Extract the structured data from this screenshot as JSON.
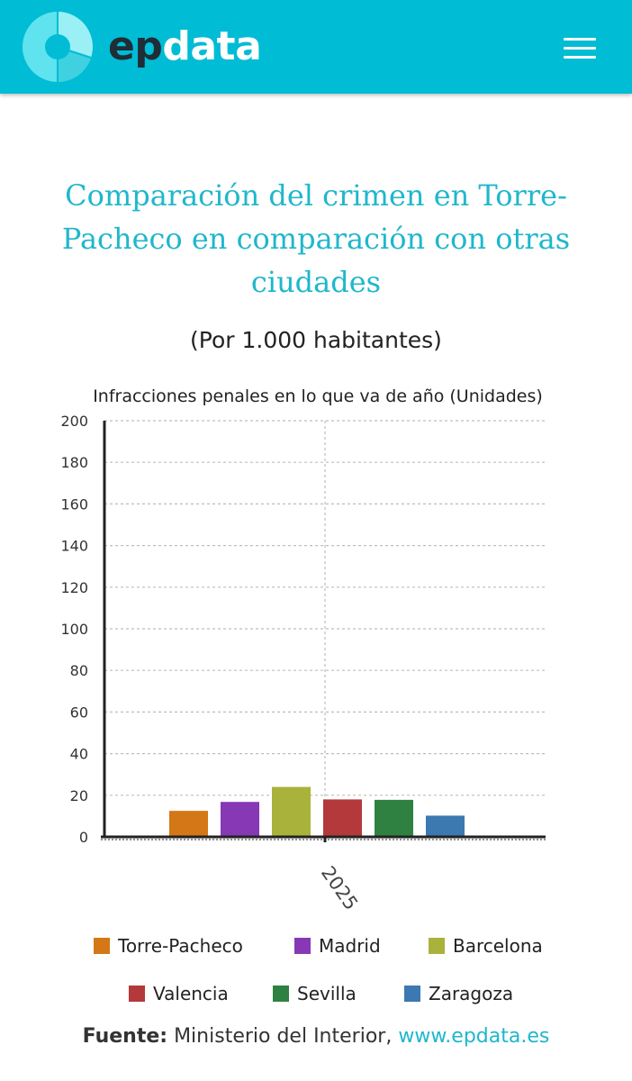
{
  "header": {
    "logo_ep": "ep",
    "logo_data": "data",
    "brand_color": "#00bcd4",
    "menu_icon": "hamburger-menu-icon"
  },
  "title": "Comparación del crimen en Torre-Pacheco en comparación con otras ciudades",
  "subtitle": "(Por 1.000 habitantes)",
  "chart_data": {
    "type": "bar",
    "title": "Infracciones penales en lo que va de año (Unidades)",
    "categories": [
      "2025"
    ],
    "ylim": [
      0,
      200
    ],
    "yticks": [
      0,
      20,
      40,
      60,
      80,
      100,
      120,
      140,
      160,
      180,
      200
    ],
    "grid": true,
    "legend_position": "bottom",
    "series": [
      {
        "name": "Torre-Pacheco",
        "values": [
          12.5
        ],
        "color": "#d47717"
      },
      {
        "name": "Madrid",
        "values": [
          16.8
        ],
        "color": "#8738b5"
      },
      {
        "name": "Barcelona",
        "values": [
          24
        ],
        "color": "#a9b23b"
      },
      {
        "name": "Valencia",
        "values": [
          18
        ],
        "color": "#b3393b"
      },
      {
        "name": "Sevilla",
        "values": [
          17.8
        ],
        "color": "#2f8141"
      },
      {
        "name": "Zaragoza",
        "values": [
          10.2
        ],
        "color": "#3b79b0"
      }
    ]
  },
  "source": {
    "label": "Fuente:",
    "text": "Ministerio del Interior,",
    "link": "www.epdata.es"
  }
}
